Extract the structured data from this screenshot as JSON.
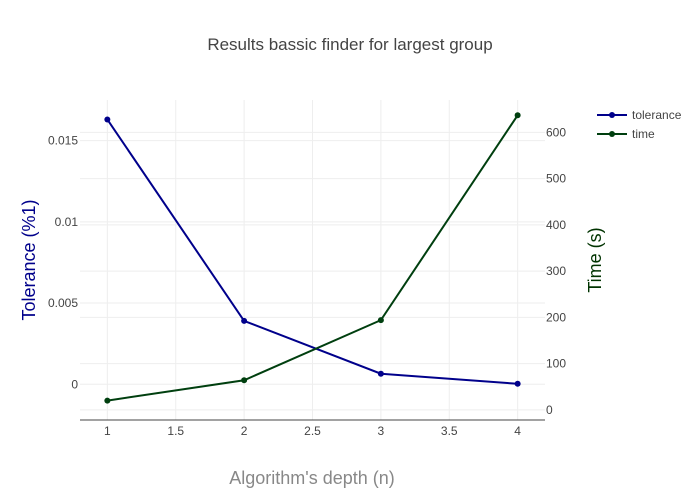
{
  "chart_data": {
    "type": "line",
    "title": "Results bassic finder for largest group",
    "xlabel": "Algorithm's depth (n)",
    "ylabel": "Tolerance (%1)",
    "y2label": "Time (s)",
    "x": [
      1,
      2,
      3,
      4
    ],
    "xlim": [
      0.8,
      4.2
    ],
    "xticks": [
      "1",
      "1.5",
      "2",
      "2.5",
      "3",
      "3.5",
      "4"
    ],
    "ylim": [
      -0.0022,
      0.0175
    ],
    "yticks": [
      0,
      0.005,
      0.01,
      0.015
    ],
    "yticklabels": [
      "0",
      "0.005",
      "0.01",
      "0.015"
    ],
    "y2lim": [
      -22,
      670
    ],
    "y2ticks": [
      0,
      100,
      200,
      300,
      400,
      500,
      600
    ],
    "y2ticklabels": [
      "0",
      "100",
      "200",
      "300",
      "400",
      "500",
      "600"
    ],
    "grid": true,
    "legend_position": "top-right",
    "series": [
      {
        "name": "tolerance",
        "axis": "left",
        "color": "#00008b",
        "values": [
          0.0163,
          0.0039,
          0.00065,
          3e-05
        ]
      },
      {
        "name": "time",
        "axis": "right",
        "color": "#003f0f",
        "values": [
          20,
          64,
          194,
          637
        ]
      }
    ]
  }
}
